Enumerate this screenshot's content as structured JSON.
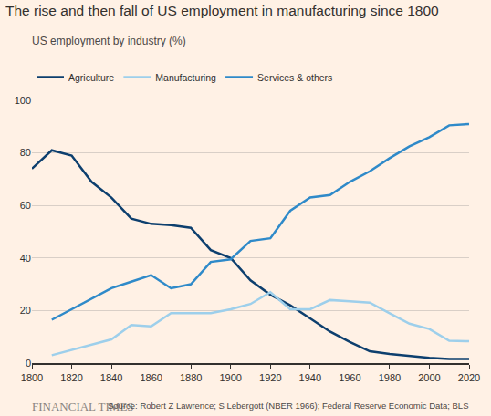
{
  "chart_data": {
    "type": "line",
    "title": "The rise and then fall of US employment in manufacturing since 1800",
    "subtitle": "US employment by industry (%)",
    "annotations": [
      "FINANCIAL TIMES",
      "Source: Robert Z Lawrence; S Lebergott (NBER 1966); Federal Reserve Economic Data; BLS"
    ],
    "x": [
      1800,
      1810,
      1820,
      1830,
      1840,
      1850,
      1860,
      1870,
      1880,
      1890,
      1900,
      1910,
      1920,
      1930,
      1940,
      1950,
      1960,
      1970,
      1980,
      1990,
      2000,
      2010,
      2020
    ],
    "series": [
      {
        "name": "Agriculture",
        "color": "#0D3F6E",
        "values": [
          74,
          81,
          79,
          69,
          63,
          55,
          53,
          52.5,
          51.5,
          43,
          40,
          31.5,
          26,
          22,
          17,
          12,
          8,
          4.5,
          3.5,
          2.8,
          2,
          1.6,
          1.6
        ]
      },
      {
        "name": "Manufacturing",
        "color": "#9DCFEB",
        "values": [
          null,
          3,
          5,
          7,
          9,
          14.5,
          14,
          19,
          19,
          19,
          20.5,
          22.5,
          27,
          20.5,
          20.5,
          24,
          23.5,
          23,
          19,
          15,
          13,
          8.5,
          8.3
        ]
      },
      {
        "name": "Services & others",
        "color": "#2F8AC9",
        "values": [
          null,
          16.5,
          20.5,
          24.5,
          28.5,
          31,
          33.5,
          28.5,
          30,
          38.5,
          39.5,
          46.5,
          47.5,
          58,
          63,
          64,
          69,
          73,
          78,
          82.5,
          86,
          90.5,
          91
        ]
      }
    ],
    "xlim": [
      1800,
      2020
    ],
    "xticks": [
      1800,
      1820,
      1840,
      1860,
      1880,
      1900,
      1920,
      1940,
      1960,
      1980,
      2000,
      2020
    ],
    "ylim": [
      0,
      100
    ],
    "yticks": [
      0,
      20,
      40,
      60,
      80,
      100
    ],
    "grid": true,
    "legend": "top-left"
  }
}
